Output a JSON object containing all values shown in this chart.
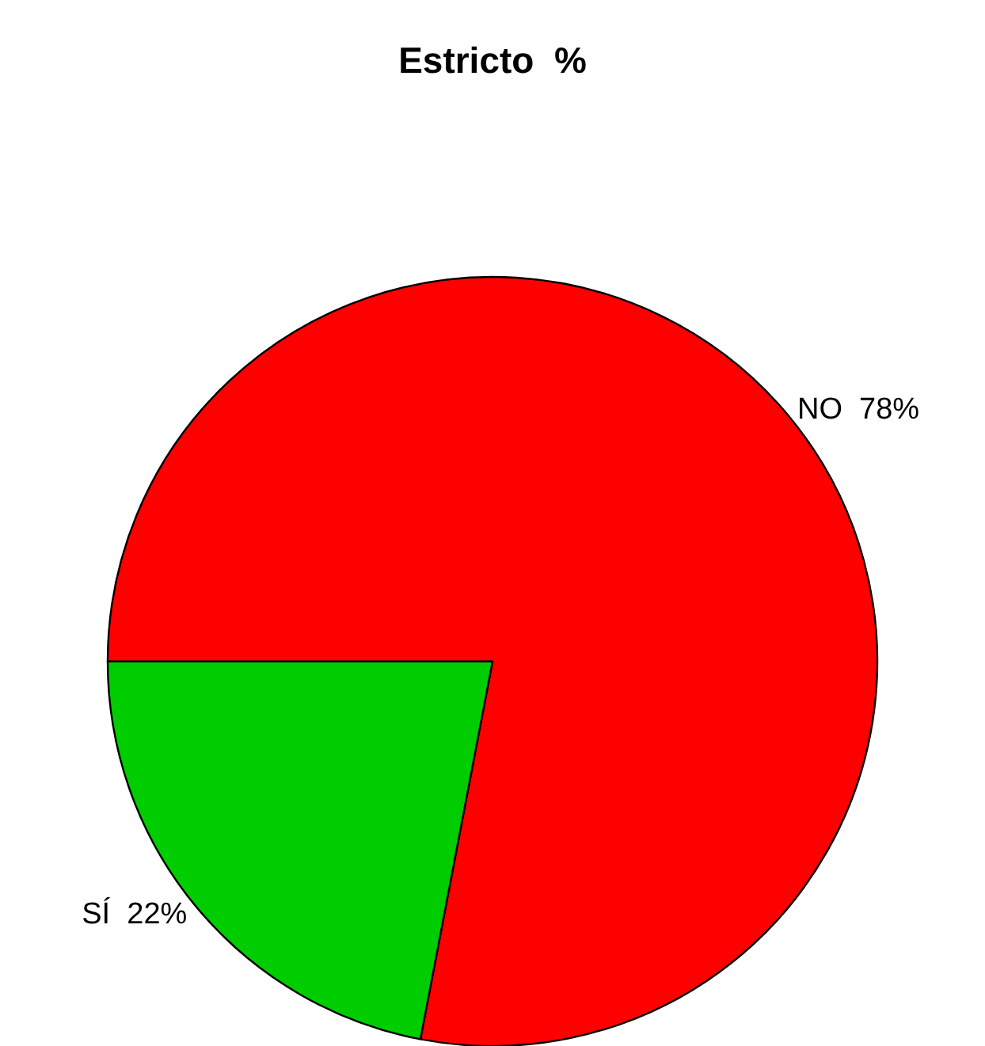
{
  "chart_data": {
    "type": "pie",
    "title": "Estricto  %",
    "categories": [
      "NO",
      "SÍ"
    ],
    "values": [
      78,
      22
    ],
    "value_labels": [
      "78%",
      "22%"
    ],
    "colors": [
      "#ff0000",
      "#00cd00"
    ],
    "legend": false
  }
}
